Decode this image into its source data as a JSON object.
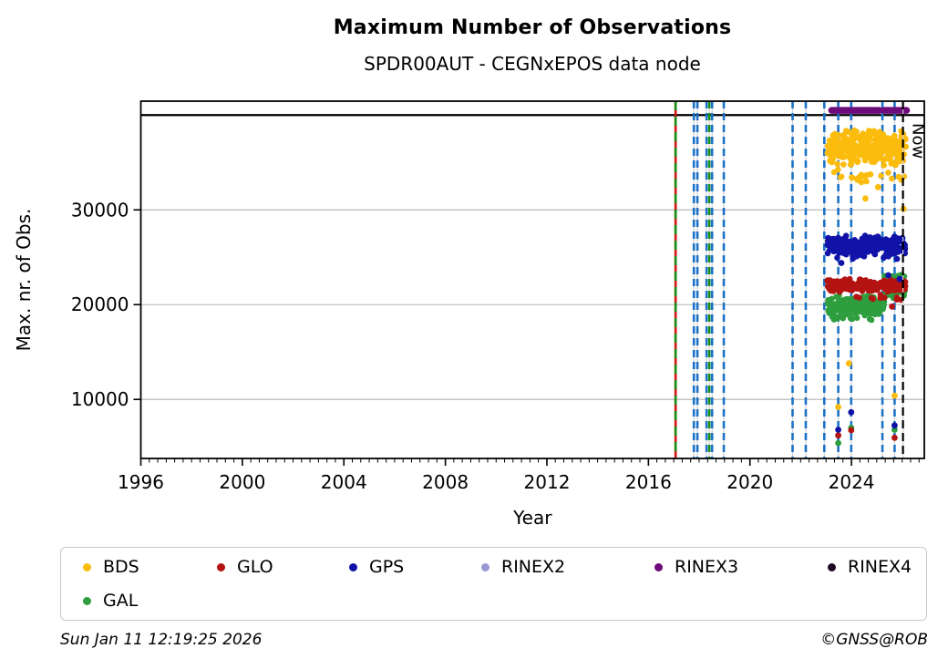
{
  "header": {
    "title": "Maximum Number of Observations",
    "subtitle": "SPDR00AUT - CEGNxEPOS data node"
  },
  "footer": {
    "timestamp": "Sun Jan 11 12:19:25 2026",
    "credit": "©GNSS@ROB"
  },
  "chart_data": {
    "type": "scatter",
    "title": "Maximum Number of Observations",
    "subtitle": "SPDR00AUT - CEGNxEPOS data node",
    "xlabel": "Year",
    "ylabel": "Max. nr. of Obs.",
    "now_label": "Now",
    "xlim": [
      1996,
      2026.87
    ],
    "ylim": [
      3770,
      41470
    ],
    "x_major_ticks": [
      1996,
      2000,
      2004,
      2008,
      2012,
      2016,
      2020,
      2024
    ],
    "x_minor_step": 0.3333,
    "y_major_ticks": [
      10000,
      20000,
      30000
    ],
    "grid_on": true,
    "grid_color": "#b2b2b2",
    "top_hline_y": 40000,
    "now_x": 2026.03,
    "colors": {
      "bds": "#FBBC0D",
      "glo": "#B31412",
      "gps": "#1113A8",
      "gal": "#2E9E3E",
      "rinex2": "#9B97D6",
      "rinex3": "#6E0B7B",
      "rinex4": "#1F0826",
      "event_blue": "#1C72C8",
      "event_green": "#159015",
      "event_red": "#CF1212",
      "now_line": "#000000"
    },
    "event_lines": {
      "red_green_overlap": [
        2017.07
      ],
      "green_dashed": [
        2018.4
      ],
      "blue_dashed": [
        2017.79,
        2017.93,
        2018.29,
        2018.51,
        2018.97,
        2021.68,
        2022.2,
        2022.93,
        2023.48,
        2023.99,
        2025.22,
        2025.7
      ]
    },
    "series": [
      {
        "name": "GAL",
        "color": "#2E9E3E",
        "clusters": [
          {
            "x0": 2023.05,
            "x1": 2025.3,
            "y0": 18300,
            "y1": 21100,
            "n": 230
          },
          {
            "x0": 2025.3,
            "x1": 2026.12,
            "y0": 20400,
            "y1": 23400,
            "n": 95
          }
        ],
        "outliers": [
          [
            2023.48,
            5400
          ],
          [
            2023.99,
            7000
          ],
          [
            2025.7,
            6800
          ]
        ]
      },
      {
        "name": "GLO",
        "color": "#B31412",
        "clusters": [
          {
            "x0": 2023.05,
            "x1": 2026.12,
            "y0": 21300,
            "y1": 22750,
            "n": 280
          },
          {
            "x0": 2023.8,
            "x1": 2026.0,
            "y0": 20200,
            "y1": 21200,
            "n": 10
          }
        ],
        "outliers": [
          [
            2023.48,
            6200
          ],
          [
            2023.99,
            6750
          ],
          [
            2025.7,
            5950
          ],
          [
            2025.6,
            19800
          ]
        ]
      },
      {
        "name": "GPS",
        "color": "#1113A8",
        "clusters": [
          {
            "x0": 2023.05,
            "x1": 2026.12,
            "y0": 25300,
            "y1": 27300,
            "n": 280
          },
          {
            "x0": 2023.1,
            "x1": 2026.0,
            "y0": 24700,
            "y1": 25600,
            "n": 12
          }
        ],
        "outliers": [
          [
            2023.48,
            6800
          ],
          [
            2023.99,
            8650
          ],
          [
            2025.7,
            7250
          ],
          [
            2024.2,
            25100
          ],
          [
            2025.45,
            23100
          ],
          [
            2025.9,
            22700
          ],
          [
            2023.6,
            24400
          ]
        ]
      },
      {
        "name": "BDS",
        "color": "#FBBC0D",
        "clusters": [
          {
            "x0": 2023.05,
            "x1": 2026.15,
            "y0": 34400,
            "y1": 38600,
            "n": 330
          },
          {
            "x0": 2023.1,
            "x1": 2026.1,
            "y0": 32800,
            "y1": 34400,
            "n": 22
          }
        ],
        "outliers": [
          [
            2023.48,
            9200
          ],
          [
            2023.9,
            13800
          ],
          [
            2025.7,
            10400
          ],
          [
            2026.05,
            30100
          ],
          [
            2025.05,
            32400
          ],
          [
            2024.55,
            31200
          ]
        ]
      },
      {
        "name": "RINEX3",
        "color": "#6E0B7B",
        "segments": [
          {
            "x0": 2023.22,
            "x1": 2025.1,
            "y": 40500
          },
          {
            "x0": 2025.27,
            "x1": 2026.17,
            "y": 40500
          }
        ]
      }
    ],
    "legend": [
      {
        "label": "BDS",
        "color": "#FBBC0D"
      },
      {
        "label": "GLO",
        "color": "#B31412"
      },
      {
        "label": "GPS",
        "color": "#1113A8"
      },
      {
        "label": "RINEX2",
        "color": "#9B97D6"
      },
      {
        "label": "RINEX3",
        "color": "#6E0B7B"
      },
      {
        "label": "RINEX4",
        "color": "#1F0826"
      },
      {
        "label": "GAL",
        "color": "#2E9E3E"
      }
    ]
  }
}
